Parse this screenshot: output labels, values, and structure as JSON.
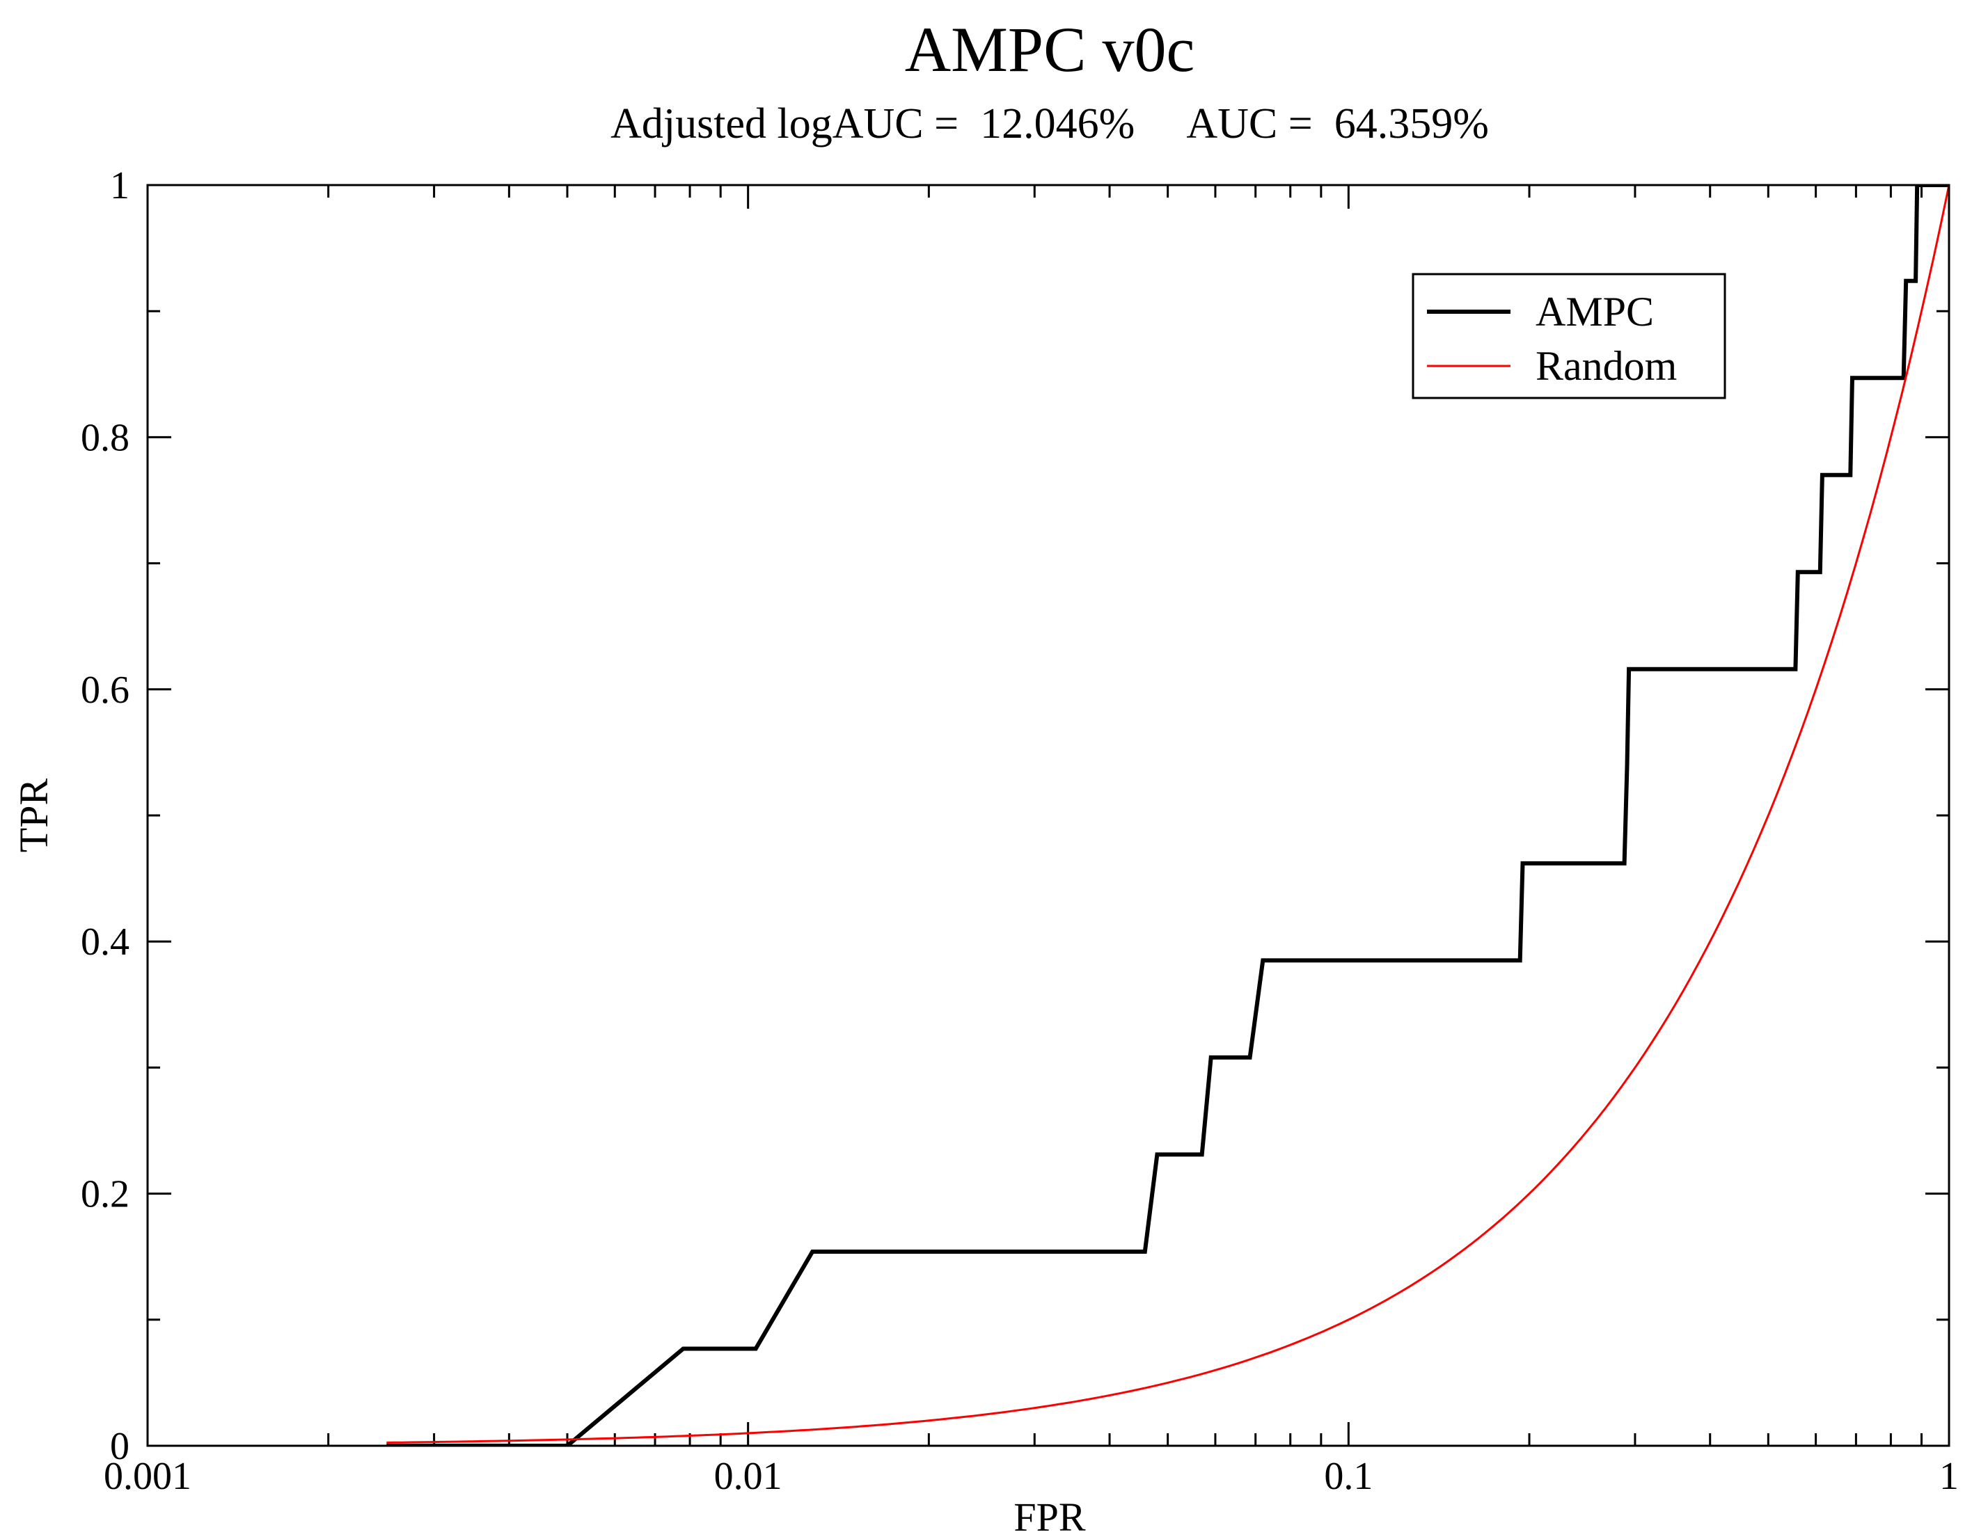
{
  "chart_data": {
    "type": "line",
    "title": "AMPC v0c",
    "subtitle": "Adjusted logAUC =  12.046%     AUC =  64.359%",
    "xlabel": "FPR",
    "ylabel": "TPR",
    "xscale": "log",
    "xlim": [
      0.001,
      1
    ],
    "ylim": [
      0,
      1
    ],
    "x_ticks": [
      0.001,
      0.01,
      0.1,
      1
    ],
    "x_tick_labels": [
      "0.001",
      "0.01",
      "0.1",
      "1"
    ],
    "y_ticks": [
      0,
      0.2,
      0.4,
      0.6,
      0.8,
      1
    ],
    "y_tick_labels": [
      "0",
      "0.2",
      "0.4",
      "0.6",
      "0.8",
      "1"
    ],
    "grid": false,
    "legend_position": "top-right",
    "series": [
      {
        "name": "AMPC",
        "color": "#000000",
        "x": [
          0.0025,
          0.005,
          0.0078,
          0.0103,
          0.0128,
          0.0458,
          0.048,
          0.057,
          0.059,
          0.0685,
          0.072,
          0.193,
          0.195,
          0.288,
          0.291,
          0.293,
          0.555,
          0.56,
          0.61,
          0.615,
          0.685,
          0.69,
          0.84,
          0.848,
          0.88,
          0.885,
          0.98,
          1.0
        ],
        "y": [
          0,
          0,
          0.077,
          0.077,
          0.154,
          0.154,
          0.231,
          0.231,
          0.308,
          0.308,
          0.385,
          0.385,
          0.462,
          0.462,
          0.539,
          0.616,
          0.616,
          0.693,
          0.693,
          0.77,
          0.77,
          0.847,
          0.847,
          0.924,
          0.924,
          1.0,
          1.0,
          1.0
        ]
      },
      {
        "name": "Random",
        "color": "#ff0000",
        "x": [
          0.0025,
          0.005,
          0.01,
          0.02,
          0.05,
          0.1,
          0.2,
          0.3,
          0.5,
          0.7,
          0.85,
          1.0
        ],
        "y": [
          0.0025,
          0.005,
          0.01,
          0.02,
          0.05,
          0.1,
          0.2,
          0.3,
          0.5,
          0.7,
          0.85,
          1.0
        ]
      }
    ]
  }
}
